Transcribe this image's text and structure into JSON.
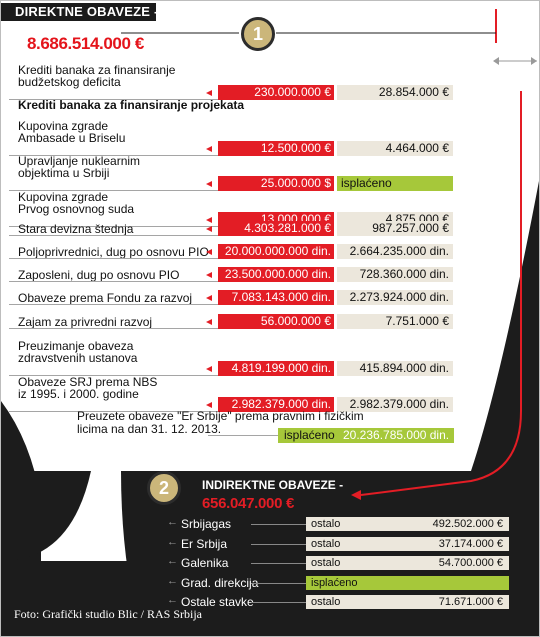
{
  "chart_data": {
    "type": "table",
    "sections": [
      {
        "number": "1",
        "title": "DIREKTNE OBAVEZE -",
        "total": "8.686.514.000 €",
        "rows": [
          {
            "label": [
              "Krediti banaka za finansiranje",
              "budžetskog deficita"
            ],
            "value1": "230.000.000 €",
            "value2": "28.854.000 €"
          },
          {
            "label": [
              "Kupovina zgrade",
              "Ambasade u Briselu"
            ],
            "value1": "12.500.000 €",
            "value2": "4.464.000 €"
          },
          {
            "label": [
              "Upravljanje nuklearnim",
              "objektima u Srbiji"
            ],
            "value1": "25.000.000 $",
            "value2": "isplaćeno"
          },
          {
            "label": [
              "Kupovina zgrade",
              "Prvog osnovnog suda"
            ],
            "value1": "13.000.000 €",
            "value2": "4.875.000 €"
          },
          {
            "label": [
              "Stara devizna štednja"
            ],
            "value1": "4.303.281.000 €",
            "value2": "987.257.000 €"
          },
          {
            "label": [
              "Poljoprivrednici, dug po osnovu PIO"
            ],
            "value1": "20.000.000.000 din.",
            "value2": "2.664.235.000 din."
          },
          {
            "label": [
              "Zaposleni, dug po osnovu PIO"
            ],
            "value1": "23.500.000.000 din.",
            "value2": "728.360.000 din."
          },
          {
            "label": [
              "Obaveze prema Fondu za razvoj"
            ],
            "value1": "7.083.143.000 din.",
            "value2": "2.273.924.000 din."
          },
          {
            "label": [
              "Zajam za privredni razvoj"
            ],
            "value1": "56.000.000 €",
            "value2": "7.751.000 €"
          },
          {
            "label": [
              "Preuzimanje obaveza",
              "zdravstvenih ustanova"
            ],
            "value1": "4.819.199.000 din.",
            "value2": "415.894.000 din."
          },
          {
            "label": [
              "Obaveze SRJ prema NBS",
              "iz 1995. i 2000. godine"
            ],
            "value1": "2.982.379.000 din.",
            "value2": "2.982.379.000 din."
          }
        ],
        "subheading": "Krediti banaka za finansiranje projekata",
        "note": {
          "label": [
            "Preuzete obaveze \"Er Srbije\" prema pravnim i fizičkim",
            "licima na dan 31. 12. 2013."
          ],
          "status": "isplaćeno",
          "value": "20.236.785.000 din."
        }
      },
      {
        "number": "2",
        "title": "INDIREKTNE OBAVEZE -",
        "total": "656.047.000 €",
        "rows": [
          {
            "label": "Srbijagas",
            "status": "ostalo",
            "value": "492.502.000 €"
          },
          {
            "label": "Er Srbija",
            "status": "ostalo",
            "value": "37.174.000 €"
          },
          {
            "label": "Galenika",
            "status": "ostalo",
            "value": "54.700.000 €"
          },
          {
            "label": "Grad. direkcija",
            "status": "isplaćeno",
            "value": ""
          },
          {
            "label": "Ostale stavke",
            "status": "ostalo",
            "value": "71.671.000 €"
          }
        ]
      }
    ]
  },
  "caption": "Foto: Grafički studio Blic / RAS Srbija",
  "colors": {
    "red": "#e31d25",
    "beige": "#ece7dc",
    "green": "#a6c83a",
    "gold": "#cbb67a",
    "dark": "#1c1c1c"
  }
}
